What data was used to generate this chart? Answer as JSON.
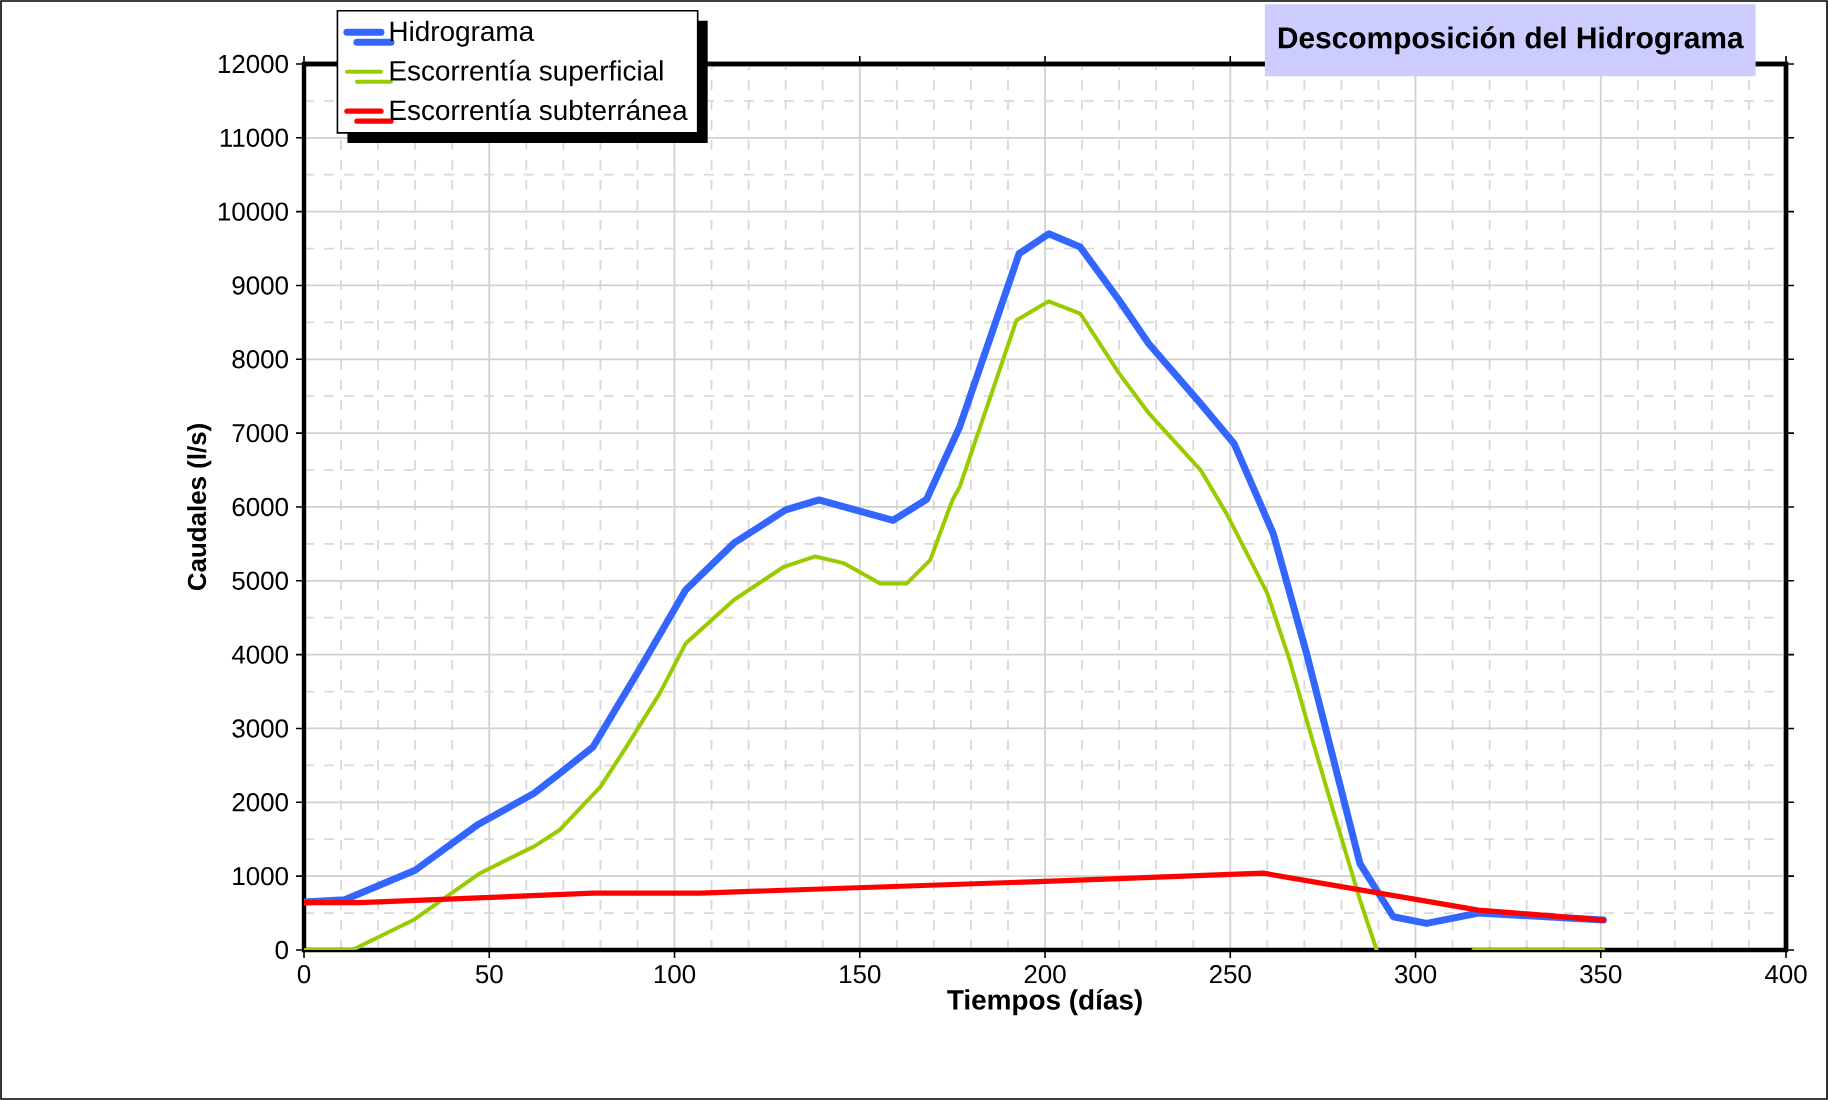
{
  "chart_data": {
    "type": "line",
    "title": "Descomposición del Hidrograma",
    "xlabel": "Tiempos (días)",
    "ylabel": "Caudales (l/s)",
    "xlim": [
      0,
      400
    ],
    "xticks": [
      0,
      50,
      100,
      150,
      200,
      250,
      300,
      350,
      400
    ],
    "ylim": [
      0,
      12000
    ],
    "yticks": [
      0,
      1000,
      2000,
      3000,
      4000,
      5000,
      6000,
      7000,
      8000,
      9000,
      10000,
      11000,
      12000
    ],
    "grid": true,
    "legend": "top left",
    "marker": "none",
    "line_style": "solid",
    "series": [
      {
        "name": "Hidrograma",
        "color": "#3366ff",
        "x": [
          0,
          11,
          30,
          47,
          62,
          69,
          78,
          91,
          103,
          116,
          130,
          139,
          159,
          168,
          177,
          193,
          201,
          209.5,
          220,
          228,
          242,
          251,
          261.6,
          270.6,
          285,
          294,
          303,
          317,
          350.7
        ],
        "values": [
          650,
          680,
          1080,
          1700,
          2120,
          2390,
          2750,
          3840,
          4875,
          5510,
          5960,
          6095,
          5820,
          6100,
          7090,
          9430,
          9700,
          9520,
          8800,
          8210,
          7400,
          6860,
          5640,
          4015,
          1170,
          450,
          360,
          500,
          405
        ]
      },
      {
        "name": "Escorrentía superficial",
        "color": "#99cc00",
        "x": [
          0,
          13,
          29.5,
          47.5,
          62,
          69,
          80,
          87,
          96,
          103,
          116,
          129.5,
          138,
          145.6,
          155.5,
          162.7,
          169,
          175,
          177,
          192.3,
          201,
          209.5,
          220,
          228,
          242,
          249,
          260,
          266,
          270.6,
          278,
          285,
          289.5,
          300,
          315.6,
          350.7
        ],
        "values": [
          0,
          0,
          405,
          1040,
          1400,
          1625,
          2210,
          2750,
          3475,
          4150,
          4740,
          5190,
          5330,
          5240,
          4965,
          4965,
          5280,
          6095,
          6275,
          8530,
          8785,
          8620,
          7810,
          7270,
          6500,
          5910,
          4830,
          3930,
          3115,
          1850,
          680,
          0,
          null,
          0,
          0
        ]
      },
      {
        "name": "Escorrentía subterránea",
        "color": "#ff0000",
        "x": [
          0,
          15,
          78,
          107,
          200,
          259,
          317,
          350.7
        ],
        "values": [
          640,
          640,
          770,
          770,
          930,
          1040,
          540,
          405
        ]
      }
    ]
  }
}
